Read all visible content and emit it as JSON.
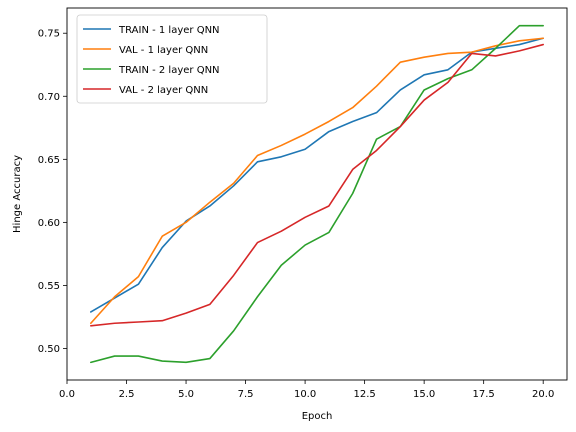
{
  "chart_data": {
    "type": "line",
    "title": "",
    "xlabel": "Epoch",
    "ylabel": "Hinge Accuracy",
    "xlim": [
      0.0,
      21.0
    ],
    "ylim": [
      0.475,
      0.77
    ],
    "xticks": [
      0.0,
      2.5,
      5.0,
      7.5,
      10.0,
      12.5,
      15.0,
      17.5,
      20.0
    ],
    "xtick_labels": [
      "0.0",
      "2.5",
      "5.0",
      "7.5",
      "10.0",
      "12.5",
      "15.0",
      "17.5",
      "20.0"
    ],
    "yticks": [
      0.5,
      0.55,
      0.6,
      0.65,
      0.7,
      0.75
    ],
    "ytick_labels": [
      "0.50",
      "0.55",
      "0.60",
      "0.65",
      "0.70",
      "0.75"
    ],
    "grid": false,
    "legend_position": "top-left",
    "x": [
      1,
      2,
      3,
      4,
      5,
      6,
      7,
      8,
      9,
      10,
      11,
      12,
      13,
      14,
      15,
      16,
      17,
      18,
      19,
      20
    ],
    "series": [
      {
        "name": "TRAIN - 1 layer QNN",
        "color": "#1f77b4",
        "values": [
          0.529,
          0.54,
          0.551,
          0.58,
          0.601,
          0.613,
          0.629,
          0.648,
          0.652,
          0.658,
          0.672,
          0.68,
          0.687,
          0.705,
          0.717,
          0.721,
          0.735,
          0.738,
          0.741,
          0.746
        ]
      },
      {
        "name": "VAL - 1 layer QNN",
        "color": "#ff7f0e",
        "values": [
          0.52,
          0.541,
          0.557,
          0.589,
          0.6,
          0.616,
          0.631,
          0.653,
          0.661,
          0.67,
          0.68,
          0.691,
          0.708,
          0.727,
          0.731,
          0.734,
          0.735,
          0.74,
          0.744,
          0.746
        ]
      },
      {
        "name": "TRAIN - 2 layer QNN",
        "color": "#2ca02c",
        "values": [
          0.489,
          0.494,
          0.494,
          0.49,
          0.489,
          0.492,
          0.514,
          0.541,
          0.566,
          0.582,
          0.592,
          0.623,
          0.666,
          0.676,
          0.705,
          0.714,
          0.721,
          0.738,
          0.756,
          0.756
        ]
      },
      {
        "name": "VAL - 2 layer QNN",
        "color": "#d62728",
        "values": [
          0.518,
          0.52,
          0.521,
          0.522,
          0.528,
          0.535,
          0.558,
          0.584,
          0.593,
          0.604,
          0.613,
          0.642,
          0.657,
          0.676,
          0.697,
          0.711,
          0.734,
          0.732,
          0.736,
          0.741
        ]
      }
    ]
  }
}
